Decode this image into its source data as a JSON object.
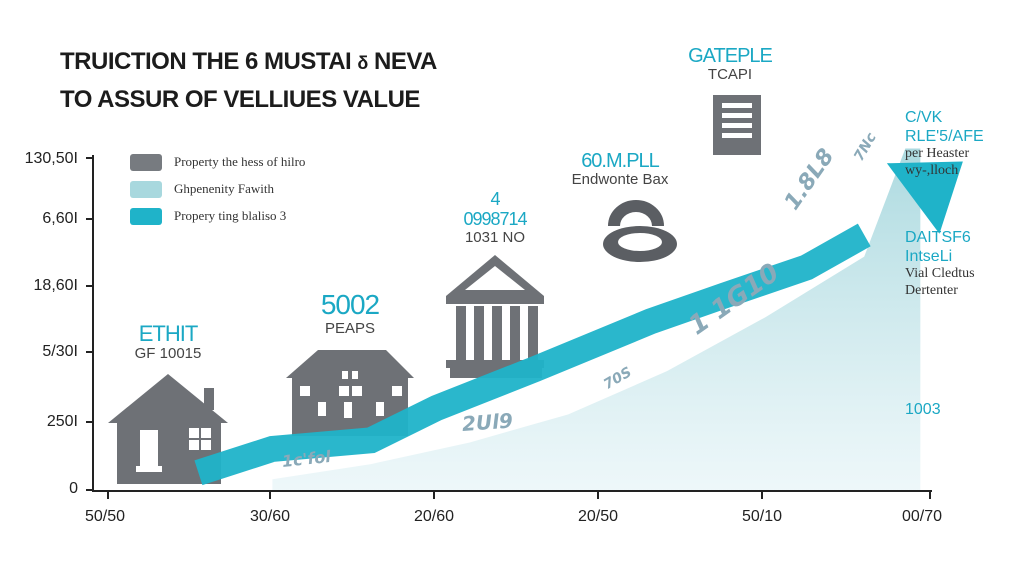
{
  "title_line1": "TRUICTION THE 6 MUSTAI",
  "title_glyph": "δ",
  "title_line1_end": "NEVA",
  "title_line2": "TO ASSUR OF VELLIUES VALUE",
  "legend": [
    {
      "label": "Property the hess of hilro",
      "color": "#777b80"
    },
    {
      "label": "Ghpenenity Fawith",
      "color": "#a8d8de"
    },
    {
      "label": "Propery ting blaliso 3",
      "color": "#1fb3c9"
    }
  ],
  "annotations": [
    {
      "line1": "ETHIT",
      "line2": "GF 10015"
    },
    {
      "line1": "5002",
      "line2": "PEAPS"
    },
    {
      "line1": "4",
      "line1b": "0998714",
      "line2": "1031 NO"
    },
    {
      "line1": "60.M.PLL",
      "line2": "Endwonte Bax"
    },
    {
      "line1": "GATEPLE",
      "line2": "TCAPI"
    }
  ],
  "right_annotations": [
    {
      "line1": "C/VK",
      "line1b": "RLE'5/AFE",
      "line2": "per Heaster",
      "line3": "wy-,lloch"
    },
    {
      "line1": "DAITSF6",
      "line1b": "IntseLi",
      "line2": "Vial Cledtus",
      "line3": "Dertenter"
    },
    {
      "line1": "1003"
    }
  ],
  "scribbles": [
    "1c'fol",
    "2Ul9",
    "70S",
    "1 1G10",
    "1.8L8",
    "7Nc"
  ],
  "colors": {
    "accent": "#1fb3c9",
    "light": "#a8d8de",
    "gray": "#777b80",
    "text": "#1c1c1c"
  },
  "icons": [
    "house-icon",
    "townhouse-icon",
    "bank-icon",
    "padlock-icon",
    "skyscraper-icon",
    "arrow-up-icon"
  ],
  "chart_data": {
    "type": "area",
    "yticks": [
      "0",
      "250I",
      "5/30I",
      "18,60I",
      "6,60I",
      "130,50I"
    ],
    "xticks": [
      "50/50",
      "30/60",
      "20/60",
      "20/50",
      "50/10",
      "00/70"
    ],
    "series": [
      {
        "name": "Propery ting blaliso 3",
        "type": "line",
        "x": [
          0.55,
          1.0,
          1.6,
          2.0,
          2.6,
          3.3,
          3.75,
          4.25,
          4.6,
          5.2
        ],
        "y": [
          0.08,
          0.19,
          0.23,
          0.38,
          0.56,
          0.78,
          0.9,
          1.03,
          1.18,
          1.52
        ]
      },
      {
        "name": "Ghpenenity Fawith",
        "type": "area",
        "x": [
          1.0,
          1.6,
          2.2,
          2.8,
          3.4,
          4.0,
          4.6,
          4.85
        ],
        "y": [
          0.05,
          0.12,
          0.22,
          0.35,
          0.55,
          0.8,
          1.08,
          1.58
        ]
      }
    ],
    "ylim": [
      0,
      1.55
    ],
    "xlim": [
      0,
      5
    ]
  }
}
